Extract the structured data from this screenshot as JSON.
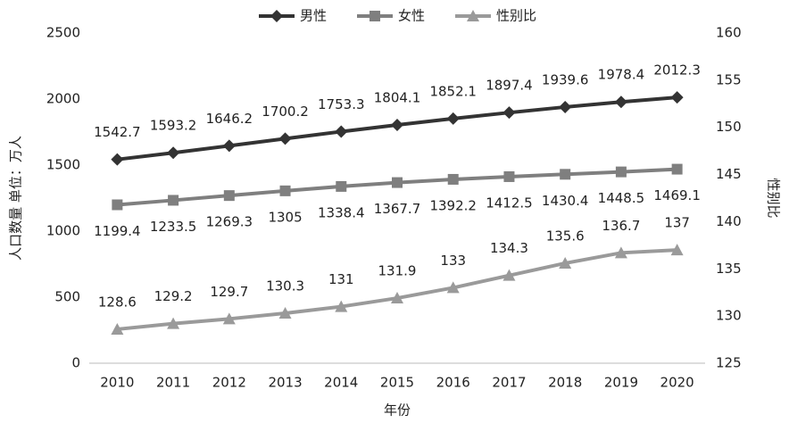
{
  "chart_data": {
    "type": "line",
    "categories": [
      "2010",
      "2011",
      "2012",
      "2013",
      "2014",
      "2015",
      "2016",
      "2017",
      "2018",
      "2019",
      "2020"
    ],
    "series": [
      {
        "name": "男性",
        "color": "#333333",
        "marker": "diamond",
        "values": [
          1542.7,
          1593.2,
          1646.2,
          1700.2,
          1753.3,
          1804.1,
          1852.1,
          1897.4,
          1939.6,
          1978.4,
          2012.3
        ]
      },
      {
        "name": "女性",
        "color": "#7f7f7f",
        "marker": "square",
        "values": [
          1199.4,
          1233.5,
          1269.3,
          1305,
          1338.4,
          1367.7,
          1392.2,
          1412.5,
          1430.4,
          1448.5,
          1469.1
        ]
      },
      {
        "name": "性别比",
        "color": "#9a9a9a",
        "marker": "triangle",
        "axis": "y2",
        "values": [
          128.6,
          129.2,
          129.7,
          130.3,
          131,
          131.9,
          133,
          134.3,
          135.6,
          136.7,
          137
        ]
      }
    ],
    "ylim": [
      0,
      2500
    ],
    "yticks": [
      0,
      500,
      1000,
      1500,
      2000,
      2500
    ],
    "y2lim": [
      125,
      160
    ],
    "y2ticks": [
      125,
      130,
      135,
      140,
      145,
      150,
      155,
      160
    ],
    "y_label": "人口数量  单位：万人",
    "y2_label": "性别比",
    "x_label": "年份",
    "legend": "top"
  }
}
